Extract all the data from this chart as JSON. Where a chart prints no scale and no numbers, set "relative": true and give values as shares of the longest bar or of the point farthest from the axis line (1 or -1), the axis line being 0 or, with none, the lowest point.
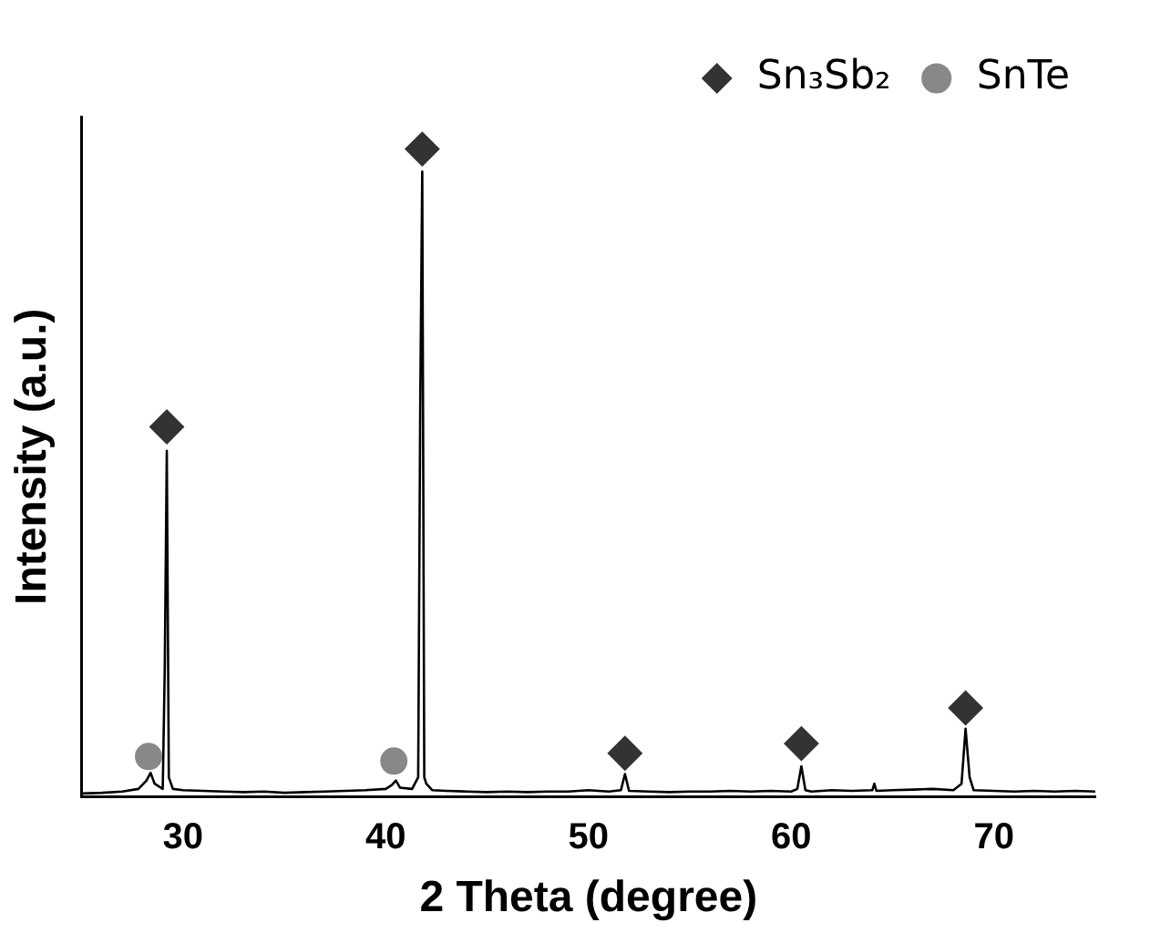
{
  "chart_data": {
    "type": "line",
    "xlabel": "2 Theta (degree)",
    "ylabel": "Intensity (a.u.)",
    "relative": true,
    "xlim": [
      25,
      75
    ],
    "xticks": [
      30,
      40,
      50,
      60,
      70
    ],
    "grid": false,
    "legend": "top right",
    "line_style": "solid",
    "series": [
      {
        "marker": "none",
        "color": "#000000",
        "x": [
          25,
          26,
          27,
          27.8,
          28.2,
          28.4,
          28.6,
          29.0,
          29.1,
          29.2,
          29.3,
          29.5,
          30,
          31,
          32,
          33,
          34,
          35,
          36,
          37,
          38,
          39,
          40,
          40.3,
          40.5,
          40.7,
          41.3,
          41.6,
          41.7,
          41.8,
          41.9,
          42.0,
          42.3,
          43,
          44,
          45,
          46,
          47,
          48,
          49,
          50,
          51,
          51.6,
          51.8,
          52.0,
          53,
          54,
          55,
          56,
          57,
          58,
          59,
          60,
          60.3,
          60.5,
          60.7,
          61,
          62,
          63,
          64,
          64.1,
          64.2,
          65,
          66,
          67,
          68,
          68.4,
          68.6,
          68.8,
          69,
          70,
          71,
          72,
          73,
          74,
          75
        ],
        "values": [
          0.005,
          0.006,
          0.008,
          0.012,
          0.025,
          0.037,
          0.02,
          0.012,
          0.2,
          0.534,
          0.03,
          0.012,
          0.01,
          0.009,
          0.008,
          0.007,
          0.008,
          0.006,
          0.007,
          0.008,
          0.009,
          0.01,
          0.012,
          0.018,
          0.025,
          0.014,
          0.012,
          0.03,
          0.6,
          0.965,
          0.03,
          0.02,
          0.01,
          0.009,
          0.008,
          0.007,
          0.008,
          0.007,
          0.008,
          0.008,
          0.01,
          0.008,
          0.01,
          0.035,
          0.009,
          0.008,
          0.007,
          0.008,
          0.008,
          0.009,
          0.008,
          0.009,
          0.008,
          0.012,
          0.047,
          0.01,
          0.008,
          0.01,
          0.009,
          0.01,
          0.02,
          0.009,
          0.01,
          0.011,
          0.012,
          0.01,
          0.02,
          0.105,
          0.03,
          0.01,
          0.009,
          0.008,
          0.009,
          0.008,
          0.009,
          0.008
        ]
      },
      {
        "type": "scatter",
        "marker": "diamond",
        "name": "Sn₃Sb₂",
        "color": "#333333",
        "x": [
          29.2,
          41.8,
          51.8,
          60.5,
          68.6
        ],
        "values": [
          0.571,
          1,
          0.067,
          0.082,
          0.137
        ]
      },
      {
        "type": "scatter",
        "marker": "circle",
        "name": "SnTe",
        "color": "#888888",
        "x": [
          28.3,
          40.4
        ],
        "values": [
          0.062,
          0.055
        ]
      }
    ]
  }
}
